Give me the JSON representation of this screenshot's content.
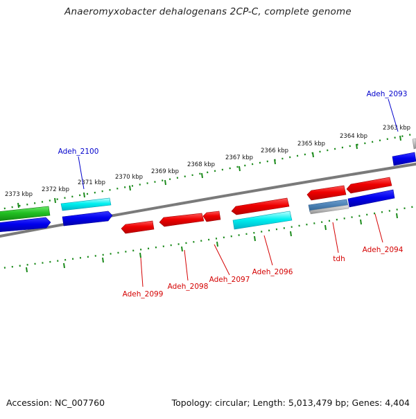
{
  "title": "Anaeromyxobacter dehalogenans 2CP-C, complete genome",
  "footer": {
    "accession": "Accession: NC_007760",
    "summary": "Topology: circular; Length: 5,013,479 bp; Genes: 4,404"
  },
  "colors": {
    "tick_green": "#1a8a1a",
    "backbone": "#7a7a7a",
    "label_red": "#d40000",
    "label_blue": "#0000cc"
  },
  "scale": {
    "ticks": [
      {
        "label": "2363 kbp"
      },
      {
        "label": "2364 kbp"
      },
      {
        "label": "2365 kbp"
      },
      {
        "label": "2366 kbp"
      },
      {
        "label": "2367 kbp"
      },
      {
        "label": "2368 kbp"
      },
      {
        "label": "2369 kbp"
      },
      {
        "label": "2370 kbp"
      },
      {
        "label": "2371 kbp"
      },
      {
        "label": "2372 kbp"
      },
      {
        "label": "2373 kbp"
      }
    ]
  },
  "genes": [
    {
      "name": "Adeh_2093",
      "color": "blue-label",
      "strand": "+"
    },
    {
      "name": "Adeh_2094",
      "color": "red-label",
      "strand": "-"
    },
    {
      "name": "tdh",
      "color": "red-label",
      "strand": "-"
    },
    {
      "name": "Adeh_2096",
      "color": "red-label",
      "strand": "-"
    },
    {
      "name": "Adeh_2097",
      "color": "red-label",
      "strand": "-"
    },
    {
      "name": "Adeh_2098",
      "color": "red-label",
      "strand": "-"
    },
    {
      "name": "Adeh_2099",
      "color": "red-label",
      "strand": "-"
    },
    {
      "name": "Adeh_2100",
      "color": "blue-label",
      "strand": "+"
    }
  ]
}
